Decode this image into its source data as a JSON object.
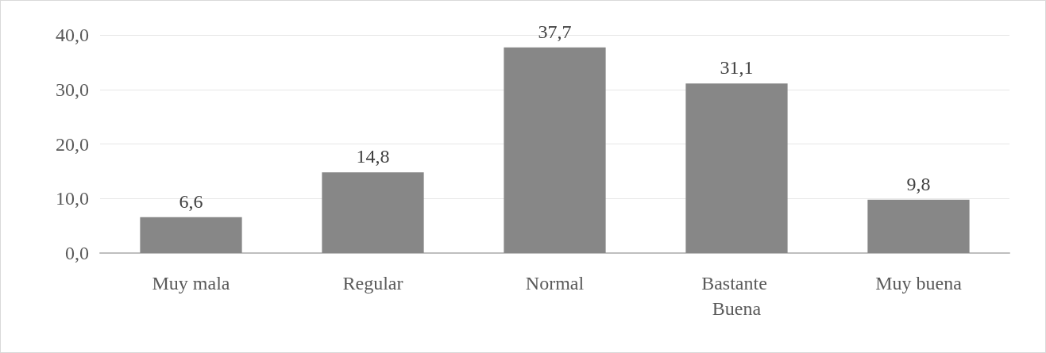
{
  "chart_data": {
    "type": "bar",
    "categories": [
      "Muy mala",
      "Regular",
      "Normal",
      "Bastante Buena",
      "Muy buena"
    ],
    "values": [
      6.6,
      14.8,
      37.7,
      31.1,
      9.8
    ],
    "color": "#878787",
    "value_labels": [
      "6,6",
      "14,8",
      "37,7",
      "31,1",
      "9,8"
    ],
    "ylim": [
      0,
      40
    ],
    "yticks": [
      {
        "value": 0,
        "label": "0,0"
      },
      {
        "value": 10,
        "label": "10,0"
      },
      {
        "value": 20,
        "label": "20,0"
      },
      {
        "value": 30,
        "label": "30,0"
      },
      {
        "value": 40,
        "label": "40,0"
      }
    ],
    "grid": "y"
  }
}
